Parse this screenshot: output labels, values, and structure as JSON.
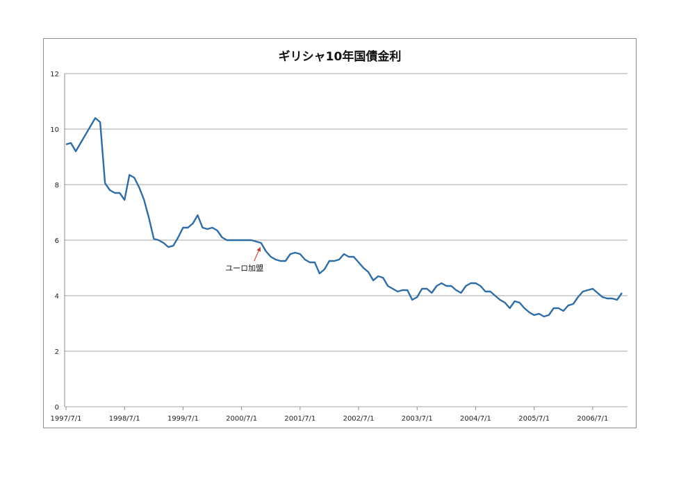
{
  "chart_data": {
    "type": "line",
    "title": "ギリシャ10年国債金利",
    "xlabel": "",
    "ylabel": "",
    "ylim": [
      0,
      12
    ],
    "yticks": [
      "0",
      "2",
      "4",
      "6",
      "8",
      "10",
      "12"
    ],
    "xlim": [
      0,
      114
    ],
    "xticks": [
      {
        "label": "1997/7/1",
        "x": 0
      },
      {
        "label": "1998/7/1",
        "x": 12
      },
      {
        "label": "1999/7/1",
        "x": 24
      },
      {
        "label": "2000/7/1",
        "x": 36
      },
      {
        "label": "2001/7/1",
        "x": 48
      },
      {
        "label": "2002/7/1",
        "x": 60
      },
      {
        "label": "2003/7/1",
        "x": 72
      },
      {
        "label": "2004/7/1",
        "x": 84
      },
      {
        "label": "2005/7/1",
        "x": 96
      },
      {
        "label": "2006/7/1",
        "x": 108
      }
    ],
    "grid": true,
    "legend": "none",
    "colors": {
      "line": "#2e6da4",
      "grid": "#a6a6a6",
      "annotation_arrow": "#c0392b"
    },
    "annotation": {
      "text": "ユーロ加盟",
      "x": 40
    },
    "series": [
      {
        "values": [
          9.45,
          9.5,
          9.2,
          9.5,
          9.8,
          10.1,
          10.4,
          10.25,
          8.05,
          7.8,
          7.7,
          7.7,
          7.45,
          8.35,
          8.25,
          7.9,
          7.45,
          6.8,
          6.05,
          6.0,
          5.9,
          5.75,
          5.8,
          6.1,
          6.45,
          6.45,
          6.6,
          6.9,
          6.45,
          6.4,
          6.45,
          6.35,
          6.1,
          6.0,
          6.0,
          6.0,
          6.0,
          6.0,
          6.0,
          5.95,
          5.9,
          5.6,
          5.4,
          5.3,
          5.25,
          5.25,
          5.5,
          5.55,
          5.5,
          5.3,
          5.2,
          5.2,
          4.8,
          4.95,
          5.25,
          5.25,
          5.3,
          5.5,
          5.4,
          5.4,
          5.2,
          5.0,
          4.85,
          4.55,
          4.7,
          4.65,
          4.35,
          4.25,
          4.15,
          4.2,
          4.2,
          3.85,
          3.95,
          4.25,
          4.25,
          4.1,
          4.35,
          4.45,
          4.35,
          4.35,
          4.2,
          4.1,
          4.35,
          4.45,
          4.45,
          4.35,
          4.15,
          4.15,
          4.0,
          3.85,
          3.75,
          3.55,
          3.8,
          3.75,
          3.55,
          3.4,
          3.3,
          3.35,
          3.25,
          3.3,
          3.55,
          3.55,
          3.45,
          3.65,
          3.7,
          3.95,
          4.15,
          4.2,
          4.25,
          4.1,
          3.95,
          3.9,
          3.9,
          3.85,
          4.1
        ]
      }
    ]
  }
}
